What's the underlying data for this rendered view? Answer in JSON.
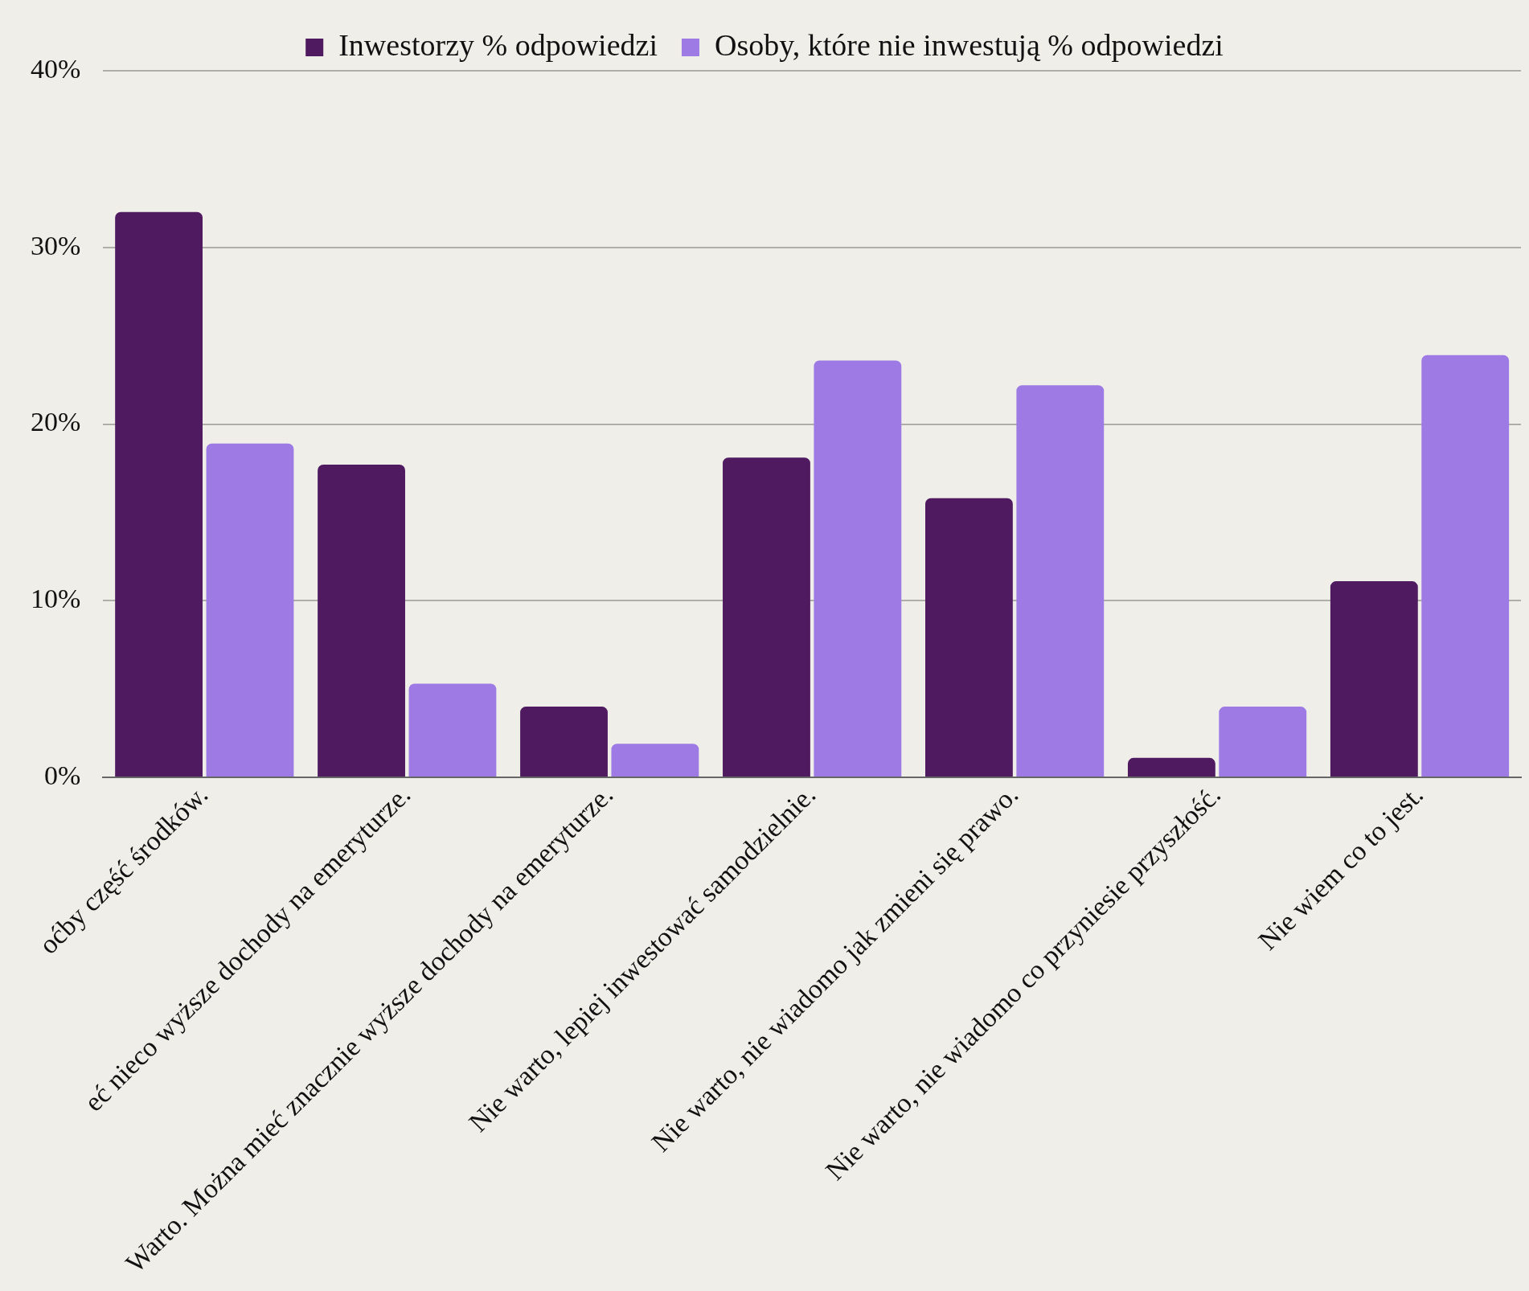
{
  "chart_data": {
    "type": "bar",
    "categories": [
      "oćby część środków.",
      "eć nieco wyższe dochody na emeryturze.",
      "Warto. Można mieć znacznie wyższe dochody na emeryturze.",
      "Nie warto, lepiej inwestować samodzielnie.",
      "Nie warto, nie wiadomo jak zmieni się prawo.",
      "Nie warto, nie wiadomo co przyniesie przyszłość.",
      "Nie wiem co to jest."
    ],
    "series": [
      {
        "name": "Inwestorzy % odpowiedzi",
        "color": "#4f1a60",
        "values": [
          32,
          17.7,
          4,
          18.1,
          15.8,
          1.1,
          11.1
        ]
      },
      {
        "name": "Osoby, które nie inwestują % odpowiedzi",
        "color": "#9e7be4",
        "values": [
          18.9,
          5.3,
          1.9,
          23.6,
          22.2,
          4,
          23.9
        ]
      }
    ],
    "ylim": [
      0,
      40
    ],
    "yticks": [
      {
        "value": 0,
        "label": "0%"
      },
      {
        "value": 10,
        "label": "10%"
      },
      {
        "value": 20,
        "label": "20%"
      },
      {
        "value": 30,
        "label": "30%"
      },
      {
        "value": 40,
        "label": "40%"
      }
    ],
    "grid": "y",
    "legend": "top"
  }
}
